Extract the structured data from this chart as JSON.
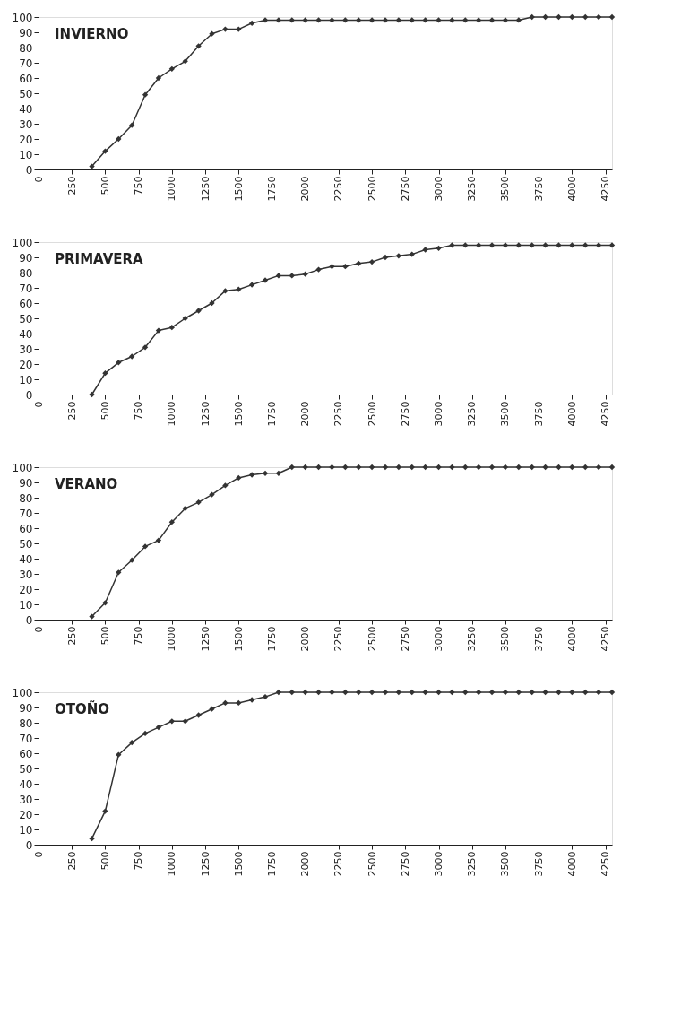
{
  "chart_data": [
    {
      "type": "line",
      "title": "INVIERNO",
      "x": [
        400,
        500,
        600,
        700,
        800,
        900,
        1000,
        1100,
        1200,
        1300,
        1400,
        1500,
        1600,
        1700,
        1800,
        1900,
        2000,
        2100,
        2200,
        2300,
        2400,
        2500,
        2600,
        2700,
        2800,
        2900,
        3000,
        3100,
        3200,
        3300,
        3400,
        3500,
        3600,
        3700,
        3800,
        3900,
        4000,
        4100,
        4200,
        4300
      ],
      "series": [
        {
          "color": "#333333",
          "values": [
            2,
            12,
            20,
            29,
            49,
            60,
            66,
            71,
            81,
            89,
            92,
            92,
            96,
            98,
            98,
            98,
            98,
            98,
            98,
            98,
            98,
            98,
            98,
            98,
            98,
            98,
            98,
            98,
            98,
            98,
            98,
            98,
            98,
            100,
            100,
            100,
            100,
            100,
            100,
            100
          ]
        }
      ],
      "xlim": [
        0,
        4300
      ],
      "xticks": [
        0,
        250,
        500,
        750,
        1000,
        1250,
        1500,
        1750,
        2000,
        2250,
        2500,
        2750,
        3000,
        3250,
        3500,
        3750,
        4000,
        4250
      ],
      "ylim": [
        0,
        100
      ],
      "yticks": [
        0,
        10,
        20,
        30,
        40,
        50,
        60,
        70,
        80,
        90,
        100
      ],
      "marker": "diamond",
      "grid": false,
      "legend": false
    },
    {
      "type": "line",
      "title": "PRIMAVERA",
      "x": [
        400,
        500,
        600,
        700,
        800,
        900,
        1000,
        1100,
        1200,
        1300,
        1400,
        1500,
        1600,
        1700,
        1800,
        1900,
        2000,
        2100,
        2200,
        2300,
        2400,
        2500,
        2600,
        2700,
        2800,
        2900,
        3000,
        3100,
        3200,
        3300,
        3400,
        3500,
        3600,
        3700,
        3800,
        3900,
        4000,
        4100,
        4200,
        4300
      ],
      "series": [
        {
          "color": "#333333",
          "values": [
            0,
            14,
            21,
            25,
            31,
            42,
            44,
            50,
            55,
            60,
            68,
            69,
            72,
            75,
            78,
            78,
            79,
            82,
            84,
            84,
            86,
            87,
            90,
            91,
            92,
            95,
            96,
            98,
            98,
            98,
            98,
            98,
            98,
            98,
            98,
            98,
            98,
            98,
            98,
            98
          ]
        }
      ],
      "xlim": [
        0,
        4300
      ],
      "xticks": [
        0,
        250,
        500,
        750,
        1000,
        1250,
        1500,
        1750,
        2000,
        2250,
        2500,
        2750,
        3000,
        3250,
        3500,
        3750,
        4000,
        4250
      ],
      "ylim": [
        0,
        100
      ],
      "yticks": [
        0,
        10,
        20,
        30,
        40,
        50,
        60,
        70,
        80,
        90,
        100
      ],
      "marker": "diamond",
      "grid": false,
      "legend": false
    },
    {
      "type": "line",
      "title": "VERANO",
      "x": [
        400,
        500,
        600,
        700,
        800,
        900,
        1000,
        1100,
        1200,
        1300,
        1400,
        1500,
        1600,
        1700,
        1800,
        1900,
        2000,
        2100,
        2200,
        2300,
        2400,
        2500,
        2600,
        2700,
        2800,
        2900,
        3000,
        3100,
        3200,
        3300,
        3400,
        3500,
        3600,
        3700,
        3800,
        3900,
        4000,
        4100,
        4200,
        4300
      ],
      "series": [
        {
          "color": "#333333",
          "values": [
            2,
            11,
            31,
            39,
            48,
            52,
            64,
            73,
            77,
            82,
            88,
            93,
            95,
            96,
            96,
            100,
            100,
            100,
            100,
            100,
            100,
            100,
            100,
            100,
            100,
            100,
            100,
            100,
            100,
            100,
            100,
            100,
            100,
            100,
            100,
            100,
            100,
            100,
            100,
            100
          ]
        }
      ],
      "xlim": [
        0,
        4300
      ],
      "xticks": [
        0,
        250,
        500,
        750,
        1000,
        1250,
        1500,
        1750,
        2000,
        2250,
        2500,
        2750,
        3000,
        3250,
        3500,
        3750,
        4000,
        4250
      ],
      "ylim": [
        0,
        100
      ],
      "yticks": [
        0,
        10,
        20,
        30,
        40,
        50,
        60,
        70,
        80,
        90,
        100
      ],
      "marker": "diamond",
      "grid": false,
      "legend": false
    },
    {
      "type": "line",
      "title": "OTOÑO",
      "x": [
        400,
        500,
        600,
        700,
        800,
        900,
        1000,
        1100,
        1200,
        1300,
        1400,
        1500,
        1600,
        1700,
        1800,
        1900,
        2000,
        2100,
        2200,
        2300,
        2400,
        2500,
        2600,
        2700,
        2800,
        2900,
        3000,
        3100,
        3200,
        3300,
        3400,
        3500,
        3600,
        3700,
        3800,
        3900,
        4000,
        4100,
        4200,
        4300
      ],
      "series": [
        {
          "color": "#333333",
          "values": [
            4,
            22,
            59,
            67,
            73,
            77,
            81,
            81,
            85,
            89,
            93,
            93,
            95,
            97,
            100,
            100,
            100,
            100,
            100,
            100,
            100,
            100,
            100,
            100,
            100,
            100,
            100,
            100,
            100,
            100,
            100,
            100,
            100,
            100,
            100,
            100,
            100,
            100,
            100,
            100
          ]
        }
      ],
      "xlim": [
        0,
        4300
      ],
      "xticks": [
        0,
        250,
        500,
        750,
        1000,
        1250,
        1500,
        1750,
        2000,
        2250,
        2500,
        2750,
        3000,
        3250,
        3500,
        3750,
        4000,
        4250
      ],
      "ylim": [
        0,
        100
      ],
      "yticks": [
        0,
        10,
        20,
        30,
        40,
        50,
        60,
        70,
        80,
        90,
        100
      ],
      "marker": "diamond",
      "grid": false,
      "legend": false
    }
  ]
}
